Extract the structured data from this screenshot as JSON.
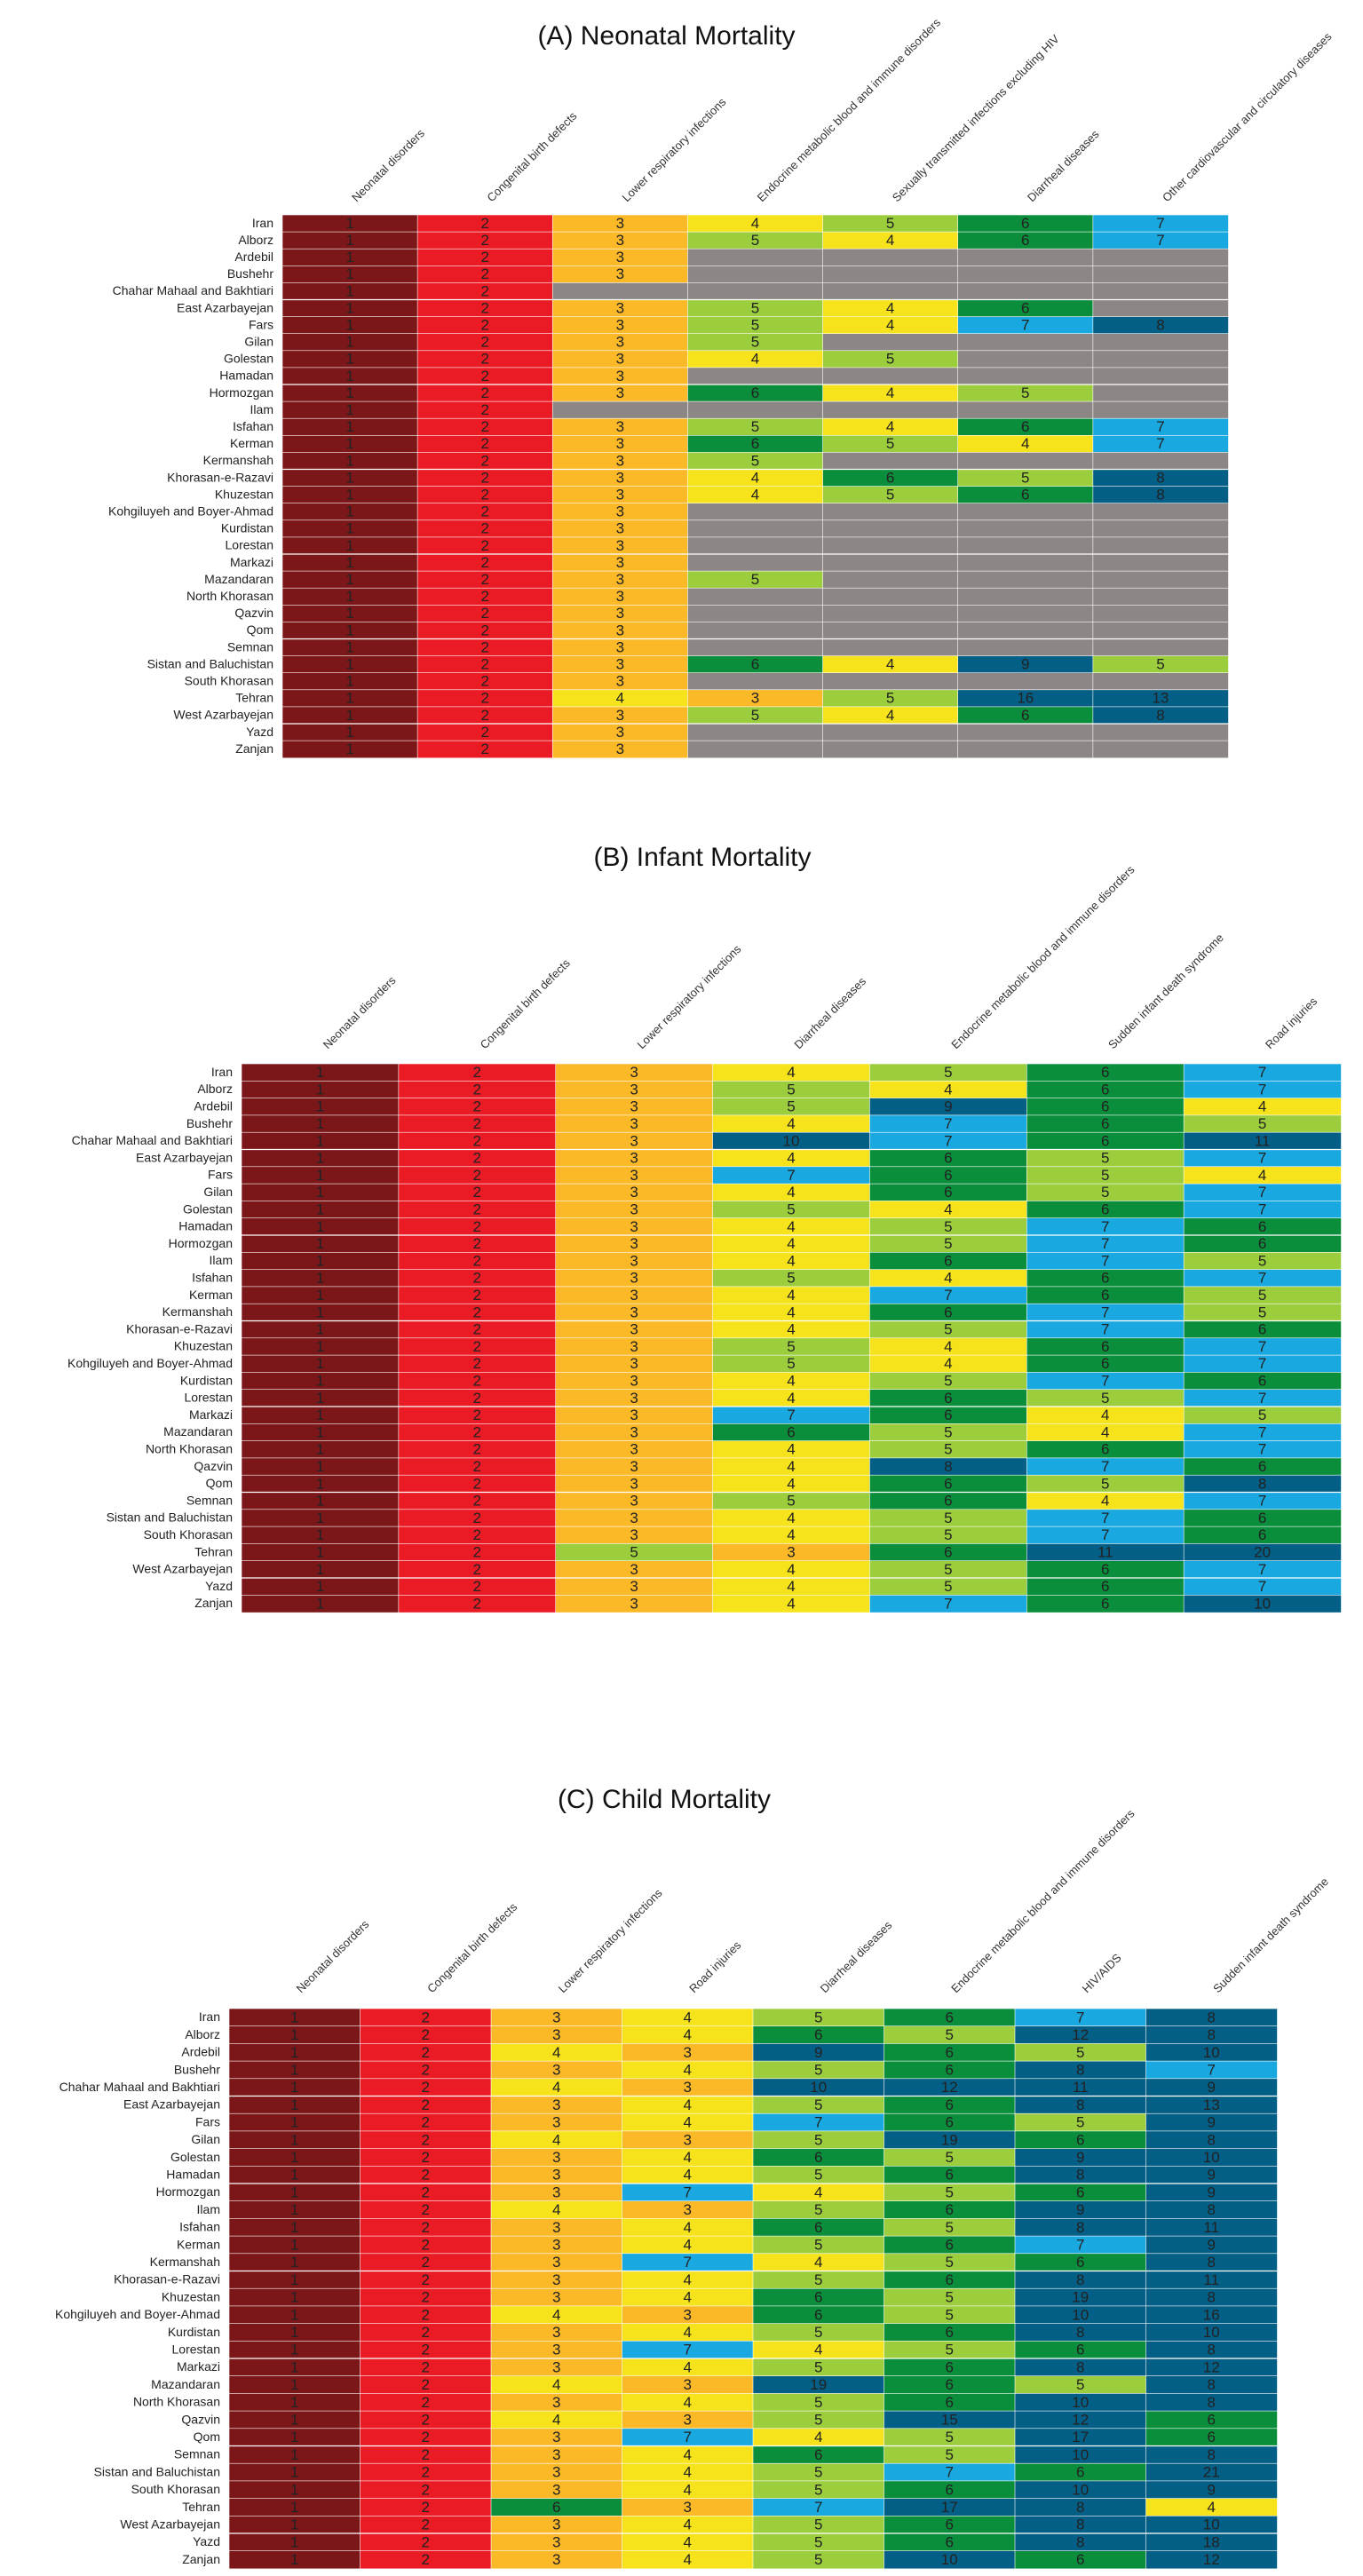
{
  "chart_data": [
    {
      "type": "heatmap",
      "title": "(A) Neonatal Mortality",
      "columns": [
        "Neonatal disorders",
        "Congenital birth defects",
        "Lower respiratory infections",
        "Endocrine metabolic blood and immune disorders",
        "Sexually transmitted infections excluding HIV",
        "Diarrheal diseases",
        "Other cardiovascular and circulatory diseases"
      ],
      "rows": [
        "Iran",
        "Alborz",
        "Ardebil",
        "Bushehr",
        "Chahar Mahaal and Bakhtiari",
        "East Azarbayejan",
        "Fars",
        "Gilan",
        "Golestan",
        "Hamadan",
        "Hormozgan",
        "Ilam",
        "Isfahan",
        "Kerman",
        "Kermanshah",
        "Khorasan-e-Razavi",
        "Khuzestan",
        "Kohgiluyeh and Boyer-Ahmad",
        "Kurdistan",
        "Lorestan",
        "Markazi",
        "Mazandaran",
        "North Khorasan",
        "Qazvin",
        "Qom",
        "Semnan",
        "Sistan and Baluchistan",
        "South Khorasan",
        "Tehran",
        "West Azarbayejan",
        "Yazd",
        "Zanjan"
      ],
      "values": [
        [
          1,
          2,
          3,
          4,
          5,
          6,
          7
        ],
        [
          1,
          2,
          3,
          5,
          4,
          6,
          7
        ],
        [
          1,
          2,
          3,
          null,
          null,
          null,
          null
        ],
        [
          1,
          2,
          3,
          null,
          null,
          null,
          null
        ],
        [
          1,
          2,
          null,
          null,
          null,
          null,
          null
        ],
        [
          1,
          2,
          3,
          5,
          4,
          6,
          null
        ],
        [
          1,
          2,
          3,
          5,
          4,
          7,
          8
        ],
        [
          1,
          2,
          3,
          5,
          null,
          null,
          null
        ],
        [
          1,
          2,
          3,
          4,
          5,
          null,
          null
        ],
        [
          1,
          2,
          3,
          null,
          null,
          null,
          null
        ],
        [
          1,
          2,
          3,
          6,
          4,
          5,
          null
        ],
        [
          1,
          2,
          null,
          null,
          null,
          null,
          null
        ],
        [
          1,
          2,
          3,
          5,
          4,
          6,
          7
        ],
        [
          1,
          2,
          3,
          6,
          5,
          4,
          7
        ],
        [
          1,
          2,
          3,
          5,
          null,
          null,
          null
        ],
        [
          1,
          2,
          3,
          4,
          6,
          5,
          8
        ],
        [
          1,
          2,
          3,
          4,
          5,
          6,
          8
        ],
        [
          1,
          2,
          3,
          null,
          null,
          null,
          null
        ],
        [
          1,
          2,
          3,
          null,
          null,
          null,
          null
        ],
        [
          1,
          2,
          3,
          null,
          null,
          null,
          null
        ],
        [
          1,
          2,
          3,
          null,
          null,
          null,
          null
        ],
        [
          1,
          2,
          3,
          5,
          null,
          null,
          null
        ],
        [
          1,
          2,
          3,
          null,
          null,
          null,
          null
        ],
        [
          1,
          2,
          3,
          null,
          null,
          null,
          null
        ],
        [
          1,
          2,
          3,
          null,
          null,
          null,
          null
        ],
        [
          1,
          2,
          3,
          null,
          null,
          null,
          null
        ],
        [
          1,
          2,
          3,
          6,
          4,
          9,
          5
        ],
        [
          1,
          2,
          3,
          null,
          null,
          null,
          null
        ],
        [
          1,
          2,
          4,
          3,
          5,
          16,
          13
        ],
        [
          1,
          2,
          3,
          5,
          4,
          6,
          8
        ],
        [
          1,
          2,
          3,
          null,
          null,
          null,
          null
        ],
        [
          1,
          2,
          3,
          null,
          null,
          null,
          null
        ]
      ]
    },
    {
      "type": "heatmap",
      "title": "(B) Infant Mortality",
      "columns": [
        "Neonatal disorders",
        "Congenital birth defects",
        "Lower respiratory infections",
        "Diarrheal diseases",
        "Endocrine metabolic blood and immune disorders",
        "Sudden infant death syndrome",
        "Road injuries"
      ],
      "rows": [
        "Iran",
        "Alborz",
        "Ardebil",
        "Bushehr",
        "Chahar Mahaal and Bakhtiari",
        "East Azarbayejan",
        "Fars",
        "Gilan",
        "Golestan",
        "Hamadan",
        "Hormozgan",
        "Ilam",
        "Isfahan",
        "Kerman",
        "Kermanshah",
        "Khorasan-e-Razavi",
        "Khuzestan",
        "Kohgiluyeh and Boyer-Ahmad",
        "Kurdistan",
        "Lorestan",
        "Markazi",
        "Mazandaran",
        "North Khorasan",
        "Qazvin",
        "Qom",
        "Semnan",
        "Sistan and Baluchistan",
        "South Khorasan",
        "Tehran",
        "West Azarbayejan",
        "Yazd",
        "Zanjan"
      ],
      "values": [
        [
          1,
          2,
          3,
          4,
          5,
          6,
          7
        ],
        [
          1,
          2,
          3,
          5,
          4,
          6,
          7
        ],
        [
          1,
          2,
          3,
          5,
          9,
          6,
          4
        ],
        [
          1,
          2,
          3,
          4,
          7,
          6,
          5
        ],
        [
          1,
          2,
          3,
          10,
          7,
          6,
          11
        ],
        [
          1,
          2,
          3,
          4,
          6,
          5,
          7
        ],
        [
          1,
          2,
          3,
          7,
          6,
          5,
          4
        ],
        [
          1,
          2,
          3,
          4,
          6,
          5,
          7
        ],
        [
          1,
          2,
          3,
          5,
          4,
          6,
          7
        ],
        [
          1,
          2,
          3,
          4,
          5,
          7,
          6
        ],
        [
          1,
          2,
          3,
          4,
          5,
          7,
          6
        ],
        [
          1,
          2,
          3,
          4,
          6,
          7,
          5
        ],
        [
          1,
          2,
          3,
          5,
          4,
          6,
          7
        ],
        [
          1,
          2,
          3,
          4,
          7,
          6,
          5
        ],
        [
          1,
          2,
          3,
          4,
          6,
          7,
          5
        ],
        [
          1,
          2,
          3,
          4,
          5,
          7,
          6
        ],
        [
          1,
          2,
          3,
          5,
          4,
          6,
          7
        ],
        [
          1,
          2,
          3,
          5,
          4,
          6,
          7
        ],
        [
          1,
          2,
          3,
          4,
          5,
          7,
          6
        ],
        [
          1,
          2,
          3,
          4,
          6,
          5,
          7
        ],
        [
          1,
          2,
          3,
          7,
          6,
          4,
          5
        ],
        [
          1,
          2,
          3,
          6,
          5,
          4,
          7
        ],
        [
          1,
          2,
          3,
          4,
          5,
          6,
          7
        ],
        [
          1,
          2,
          3,
          4,
          8,
          7,
          6
        ],
        [
          1,
          2,
          3,
          4,
          6,
          5,
          8
        ],
        [
          1,
          2,
          3,
          5,
          6,
          4,
          7
        ],
        [
          1,
          2,
          3,
          4,
          5,
          7,
          6
        ],
        [
          1,
          2,
          3,
          4,
          5,
          7,
          6
        ],
        [
          1,
          2,
          5,
          3,
          6,
          11,
          20
        ],
        [
          1,
          2,
          3,
          4,
          5,
          6,
          7
        ],
        [
          1,
          2,
          3,
          4,
          5,
          6,
          7
        ],
        [
          1,
          2,
          3,
          4,
          7,
          6,
          10
        ]
      ]
    },
    {
      "type": "heatmap",
      "title": "(C) Child Mortality",
      "columns": [
        "Neonatal disorders",
        "Congenital birth defects",
        "Lower respiratory infections",
        "Road injuries",
        "Diarrheal diseases",
        "Endocrine metabolic blood and immune disorders",
        "HIV/AIDS",
        "Sudden infant death syndrome"
      ],
      "rows": [
        "Iran",
        "Alborz",
        "Ardebil",
        "Bushehr",
        "Chahar Mahaal and Bakhtiari",
        "East Azarbayejan",
        "Fars",
        "Gilan",
        "Golestan",
        "Hamadan",
        "Hormozgan",
        "Ilam",
        "Isfahan",
        "Kerman",
        "Kermanshah",
        "Khorasan-e-Razavi",
        "Khuzestan",
        "Kohgiluyeh and Boyer-Ahmad",
        "Kurdistan",
        "Lorestan",
        "Markazi",
        "Mazandaran",
        "North Khorasan",
        "Qazvin",
        "Qom",
        "Semnan",
        "Sistan and Baluchistan",
        "South Khorasan",
        "Tehran",
        "West Azarbayejan",
        "Yazd",
        "Zanjan"
      ],
      "values": [
        [
          1,
          2,
          3,
          4,
          5,
          6,
          7,
          8
        ],
        [
          1,
          2,
          3,
          4,
          6,
          5,
          12,
          8
        ],
        [
          1,
          2,
          4,
          3,
          9,
          6,
          5,
          10
        ],
        [
          1,
          2,
          3,
          4,
          5,
          6,
          8,
          7
        ],
        [
          1,
          2,
          4,
          3,
          10,
          12,
          11,
          9
        ],
        [
          1,
          2,
          3,
          4,
          5,
          6,
          8,
          13
        ],
        [
          1,
          2,
          3,
          4,
          7,
          6,
          5,
          9
        ],
        [
          1,
          2,
          4,
          3,
          5,
          19,
          6,
          8
        ],
        [
          1,
          2,
          3,
          4,
          6,
          5,
          9,
          10
        ],
        [
          1,
          2,
          3,
          4,
          5,
          6,
          8,
          9
        ],
        [
          1,
          2,
          3,
          7,
          4,
          5,
          6,
          9
        ],
        [
          1,
          2,
          4,
          3,
          5,
          6,
          9,
          8
        ],
        [
          1,
          2,
          3,
          4,
          6,
          5,
          8,
          11
        ],
        [
          1,
          2,
          3,
          4,
          5,
          6,
          7,
          9
        ],
        [
          1,
          2,
          3,
          7,
          4,
          5,
          6,
          8
        ],
        [
          1,
          2,
          3,
          4,
          5,
          6,
          8,
          11
        ],
        [
          1,
          2,
          3,
          4,
          6,
          5,
          19,
          8
        ],
        [
          1,
          2,
          4,
          3,
          6,
          5,
          10,
          16
        ],
        [
          1,
          2,
          3,
          4,
          5,
          6,
          8,
          10
        ],
        [
          1,
          2,
          3,
          7,
          4,
          5,
          6,
          8
        ],
        [
          1,
          2,
          3,
          4,
          5,
          6,
          8,
          12
        ],
        [
          1,
          2,
          4,
          3,
          19,
          6,
          5,
          8
        ],
        [
          1,
          2,
          3,
          4,
          5,
          6,
          10,
          8
        ],
        [
          1,
          2,
          4,
          3,
          5,
          15,
          12,
          6
        ],
        [
          1,
          2,
          3,
          7,
          4,
          5,
          17,
          6
        ],
        [
          1,
          2,
          3,
          4,
          6,
          5,
          10,
          8
        ],
        [
          1,
          2,
          3,
          4,
          5,
          7,
          6,
          21
        ],
        [
          1,
          2,
          3,
          4,
          5,
          6,
          10,
          9
        ],
        [
          1,
          2,
          6,
          3,
          7,
          17,
          8,
          4
        ],
        [
          1,
          2,
          3,
          4,
          5,
          6,
          8,
          10
        ],
        [
          1,
          2,
          3,
          4,
          5,
          6,
          8,
          18
        ],
        [
          1,
          2,
          3,
          4,
          5,
          10,
          6,
          12
        ]
      ]
    }
  ],
  "colors": {
    "1": "#7b1719",
    "2": "#ea1b24",
    "3": "#fbb928",
    "4": "#f6e31b",
    "5": "#9ccd3c",
    "6": "#0a8e3c",
    "7": "#1aa8e0",
    "high": "#045f86",
    "missing": "#8c8784"
  }
}
